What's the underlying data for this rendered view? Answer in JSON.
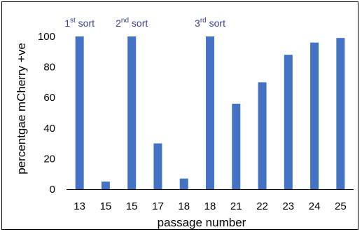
{
  "chart_data": {
    "type": "bar",
    "categories": [
      "13",
      "15",
      "15",
      "17",
      "18",
      "18",
      "21",
      "22",
      "23",
      "24",
      "25"
    ],
    "values": [
      100,
      5,
      100,
      30,
      7,
      100,
      56,
      70,
      88,
      96,
      99
    ],
    "xlabel": "passage number",
    "ylabel": "percentgae mCherry +ve",
    "ylim": [
      0,
      100
    ],
    "yticks": [
      0,
      20,
      40,
      60,
      80,
      100
    ],
    "grid": false,
    "legend": "none",
    "bar_color": "#4472C4",
    "annotations": [
      {
        "category_index": 0,
        "number": "1",
        "sup": "st",
        "text": " sort"
      },
      {
        "category_index": 2,
        "number": "2",
        "sup": "nd",
        "text": " sort"
      },
      {
        "category_index": 5,
        "number": "3",
        "sup": "rd",
        "text": " sort"
      }
    ],
    "annotation_color": "#3A3F8F"
  }
}
